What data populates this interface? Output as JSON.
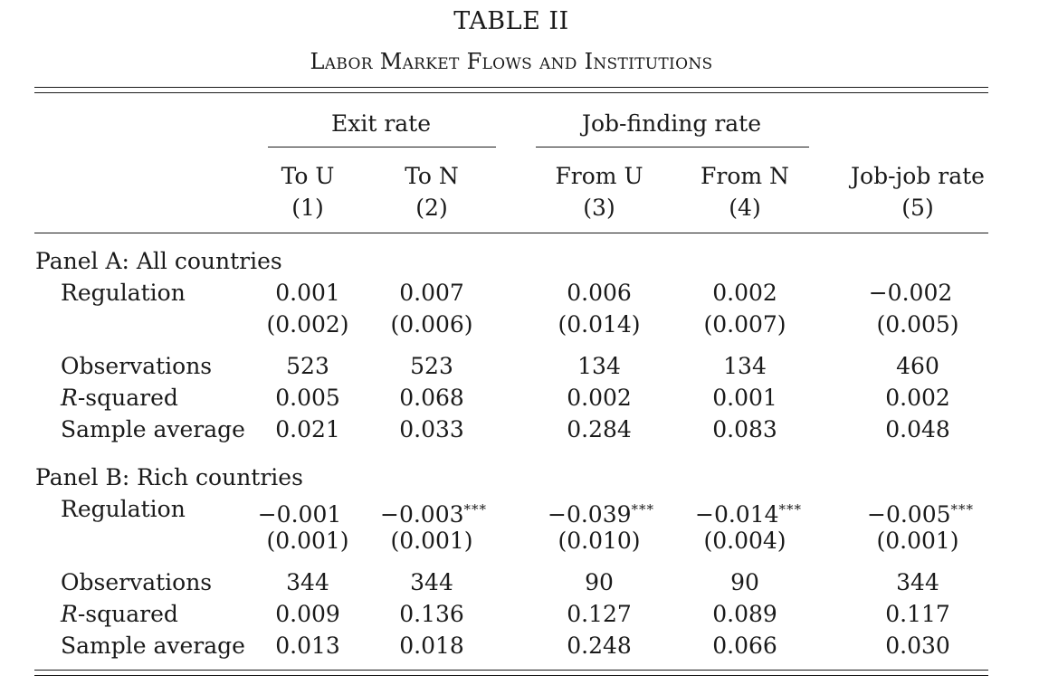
{
  "table": {
    "title": "TABLE II",
    "subtitle": "Labor Market Flows and Institutions",
    "groups": {
      "exit_rate": "Exit rate",
      "job_finding_rate": "Job-finding rate"
    },
    "columns": [
      {
        "label": "To U",
        "num": "(1)"
      },
      {
        "label": "To N",
        "num": "(2)"
      },
      {
        "label": "From U",
        "num": "(3)"
      },
      {
        "label": "From N",
        "num": "(4)"
      },
      {
        "label": "Job-job rate",
        "num": "(5)"
      }
    ],
    "panels": [
      {
        "title": "Panel A: All countries",
        "regulation": {
          "label": "Regulation",
          "coef": [
            "0.001",
            "0.007",
            "0.006",
            "0.002",
            "−0.002"
          ],
          "stars": [
            "",
            "",
            "",
            "",
            ""
          ],
          "se": [
            "(0.002)",
            "(0.006)",
            "(0.014)",
            "(0.007)",
            "(0.005)"
          ]
        },
        "observations": {
          "label": "Observations",
          "values": [
            "523",
            "523",
            "134",
            "134",
            "460"
          ]
        },
        "rsquared": {
          "label_italic": "R",
          "label_rest": "-squared",
          "values": [
            "0.005",
            "0.068",
            "0.002",
            "0.001",
            "0.002"
          ]
        },
        "sample_average": {
          "label": "Sample average",
          "values": [
            "0.021",
            "0.033",
            "0.284",
            "0.083",
            "0.048"
          ]
        }
      },
      {
        "title": "Panel B: Rich countries",
        "regulation": {
          "label": "Regulation",
          "coef": [
            "−0.001",
            "−0.003",
            "−0.039",
            "−0.014",
            "−0.005"
          ],
          "stars": [
            "",
            "***",
            "***",
            "***",
            "***"
          ],
          "se": [
            "(0.001)",
            "(0.001)",
            "(0.010)",
            "(0.004)",
            "(0.001)"
          ]
        },
        "observations": {
          "label": "Observations",
          "values": [
            "344",
            "344",
            "90",
            "90",
            "344"
          ]
        },
        "rsquared": {
          "label_italic": "R",
          "label_rest": "-squared",
          "values": [
            "0.009",
            "0.136",
            "0.127",
            "0.089",
            "0.117"
          ]
        },
        "sample_average": {
          "label": "Sample average",
          "values": [
            "0.013",
            "0.018",
            "0.248",
            "0.066",
            "0.030"
          ]
        }
      }
    ]
  }
}
